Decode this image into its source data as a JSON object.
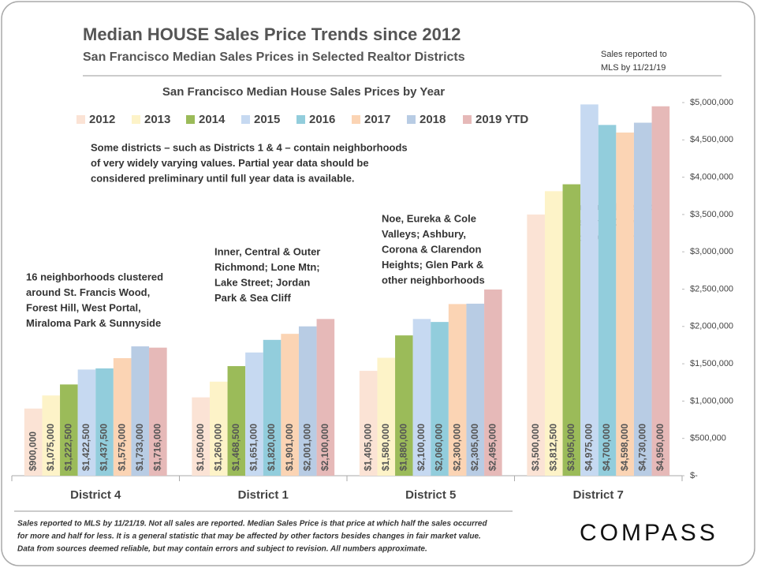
{
  "chart_data": {
    "type": "bar",
    "title": "Median HOUSE Sales Price Trends since 2012",
    "subtitle": "San Francisco Median Sales Prices in Selected Realtor Districts",
    "side_note": [
      "Sales reported to",
      "MLS by 11/21/19"
    ],
    "chart_title": "San Francisco Median House Sales Prices by Year",
    "note": [
      "Some districts – such as Districts 1 & 4 – contain neighborhoods",
      "of very widely varying values. Partial year data should be",
      "considered preliminary until full year data is available."
    ],
    "district_notes": [
      [
        "16 neighborhoods clustered",
        "around St. Francis Wood,",
        "Forest Hill, West Portal,",
        "Miraloma Park & Sunnyside"
      ],
      [
        "Inner, Central & Outer",
        "Richmond; Lone Mtn;",
        "Lake Street; Jordan",
        "Park & Sea Cliff"
      ],
      [
        "Noe, Eureka & Cole",
        "Valleys; Ashbury,",
        "Corona & Clarendon",
        "Heights; Glen Park &",
        "other neighborhoods"
      ],
      [
        "Pacific & Presidio",
        "Heights, Cow",
        "Hollow & Marina"
      ]
    ],
    "footnote": [
      "Sales reported to MLS by 11/21/19. Not all sales are reported. Median Sales Price is that price at which half the sales occurred",
      "for more and half for less. It is a general statistic that may be affected by other factors besides changes in fair market value.",
      "Data from sources deemed reliable, but may contain errors and subject to revision.  All numbers approximate."
    ],
    "brand": "COMPASS",
    "categories": [
      "District 4",
      "District 1",
      "District 5",
      "District 7"
    ],
    "ylim": [
      0,
      5000000
    ],
    "yticks": [
      {
        "value": 0,
        "label": "$-"
      },
      {
        "value": 500000,
        "label": "$500,000"
      },
      {
        "value": 1000000,
        "label": "$1,000,000"
      },
      {
        "value": 1500000,
        "label": "$1,500,000"
      },
      {
        "value": 2000000,
        "label": "$2,000,000"
      },
      {
        "value": 2500000,
        "label": "$2,500,000"
      },
      {
        "value": 3000000,
        "label": "$3,000,000"
      },
      {
        "value": 3500000,
        "label": "$3,500,000"
      },
      {
        "value": 4000000,
        "label": "$4,000,000"
      },
      {
        "value": 4500000,
        "label": "$4,500,000"
      },
      {
        "value": 5000000,
        "label": "$5,000,000"
      }
    ],
    "y_axis_side": "right",
    "grid": false,
    "series": [
      {
        "name": "2012",
        "color": "#fbe3d5",
        "values": [
          900000,
          1050000,
          1405000,
          3500000
        ],
        "value_labels": [
          "$900,000",
          "$1,050,000",
          "$1,405,000",
          "$3,500,000"
        ]
      },
      {
        "name": "2013",
        "color": "#fdf3c8",
        "values": [
          1075000,
          1260000,
          1580000,
          3812500
        ],
        "value_labels": [
          "$1,075,000",
          "$1,260,000",
          "$1,580,000",
          "$3,812,500"
        ]
      },
      {
        "name": "2014",
        "color": "#9bbb59",
        "values": [
          1222500,
          1468500,
          1880000,
          3905000
        ],
        "value_labels": [
          "$1,222,500",
          "$1,468,500",
          "$1,880,000",
          "$3,905,000"
        ]
      },
      {
        "name": "2015",
        "color": "#c6d9f1",
        "values": [
          1422500,
          1651000,
          2100000,
          4975000
        ],
        "value_labels": [
          "$1,422,500",
          "$1,651,000",
          "$2,100,000",
          "$4,975,000"
        ]
      },
      {
        "name": "2016",
        "color": "#92cddc",
        "values": [
          1437500,
          1820000,
          2060000,
          4700000
        ],
        "value_labels": [
          "$1,437,500",
          "$1,820,000",
          "$2,060,000",
          "$4,700,000"
        ]
      },
      {
        "name": "2017",
        "color": "#fbd4b4",
        "values": [
          1575000,
          1901000,
          2300000,
          4598000
        ],
        "value_labels": [
          "$1,575,000",
          "$1,901,000",
          "$2,300,000",
          "$4,598,000"
        ]
      },
      {
        "name": "2018",
        "color": "#b8cce4",
        "values": [
          1733000,
          2001000,
          2305000,
          4730000
        ],
        "value_labels": [
          "$1,733,000",
          "$2,001,000",
          "$2,305,000",
          "$4,730,000"
        ]
      },
      {
        "name": "2019 YTD",
        "color": "#e6b9b8",
        "values": [
          1716000,
          2100000,
          2495000,
          4950000
        ],
        "value_labels": [
          "$1,716,000",
          "$2,100,000",
          "$2,495,000",
          "$4,950,000"
        ]
      }
    ]
  }
}
